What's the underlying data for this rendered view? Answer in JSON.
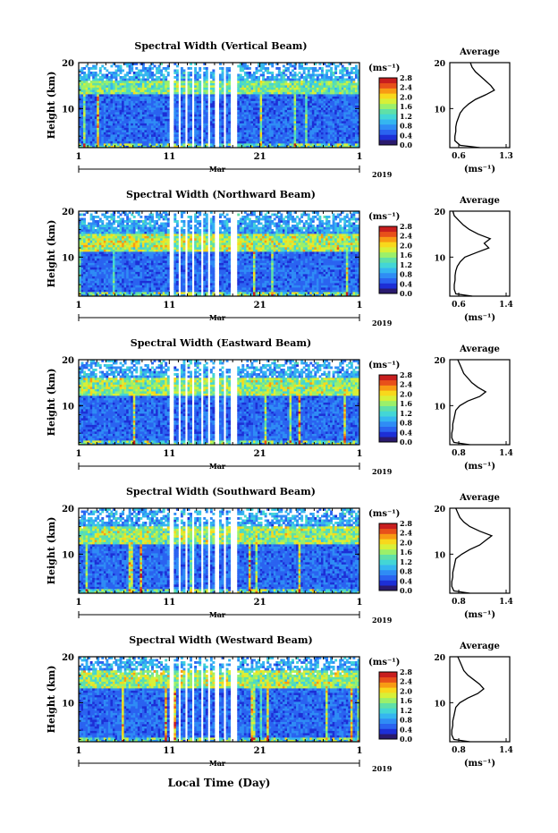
{
  "figure": {
    "xlabel": "Local Time (Day)",
    "month_label": "Mar",
    "year_label": "2019"
  },
  "colorscale": {
    "unit": "(ms⁻¹)",
    "ticks": [
      "0.0",
      "0.4",
      "0.8",
      "1.2",
      "1.6",
      "2.0",
      "2.4",
      "2.8"
    ],
    "colors": [
      "#2a1a6e",
      "#1d2fd6",
      "#2a63f0",
      "#2f8cf5",
      "#35b6f0",
      "#43d6d6",
      "#5fe0a8",
      "#9bf06a",
      "#d8f038",
      "#f8d81c",
      "#f89a14",
      "#e8501a",
      "#c81e1e"
    ]
  },
  "chart_data": [
    {
      "type": "heatmap",
      "title": "Spectral Width (Vertical Beam)",
      "ylabel": "Height (km)",
      "x_ticks": [
        "1",
        "11",
        "21",
        "1"
      ],
      "y_ticks": [
        "10",
        "20"
      ],
      "xlim_day": [
        1,
        32
      ],
      "ylim_km": [
        1.5,
        20
      ],
      "gap_days": [
        [
          11.1,
          11.4
        ],
        [
          11.9,
          12.2
        ],
        [
          12.7,
          13.0
        ],
        [
          13.5,
          13.8
        ],
        [
          14.4,
          14.7
        ],
        [
          15.3,
          15.6
        ],
        [
          16.1,
          16.4
        ],
        [
          17.0,
          17.3
        ],
        [
          17.8,
          18.5
        ]
      ],
      "enhanced_layer": {
        "days": [
          1,
          32
        ],
        "height_km": [
          13,
          16
        ],
        "peak_width": 1.3
      },
      "average": {
        "title": "Average",
        "x_ticks": [
          "0.6",
          "1.3"
        ],
        "xlim": [
          0.6,
          1.3
        ],
        "xlabel": "(ms⁻¹)",
        "height_km": [
          1.5,
          2,
          3,
          4,
          5,
          6,
          7,
          8,
          9,
          10,
          11,
          12,
          13,
          14,
          15,
          16,
          17,
          18,
          19,
          20
        ],
        "width": [
          0.95,
          0.72,
          0.66,
          0.66,
          0.67,
          0.67,
          0.68,
          0.7,
          0.72,
          0.76,
          0.82,
          0.9,
          1.02,
          1.12,
          1.08,
          1.02,
          0.96,
          0.9,
          0.86,
          0.84
        ]
      }
    },
    {
      "type": "heatmap",
      "title": "Spectral Width (Northward Beam)",
      "ylabel": "Height (km)",
      "x_ticks": [
        "1",
        "11",
        "21",
        "1"
      ],
      "y_ticks": [
        "10",
        "20"
      ],
      "xlim_day": [
        1,
        32
      ],
      "ylim_km": [
        1.5,
        20
      ],
      "gap_days": [
        [
          11.1,
          11.4
        ],
        [
          11.9,
          12.2
        ],
        [
          12.7,
          13.0
        ],
        [
          13.5,
          13.8
        ],
        [
          14.4,
          14.7
        ],
        [
          15.3,
          15.6
        ],
        [
          16.1,
          16.4
        ],
        [
          17.8,
          18.5
        ]
      ],
      "enhanced_layer": {
        "days": [
          1,
          32
        ],
        "height_km": [
          11,
          15
        ],
        "peak_width": 1.6
      },
      "average": {
        "title": "Average",
        "x_ticks": [
          "0.6",
          "1.4"
        ],
        "xlim": [
          0.6,
          1.4
        ],
        "xlabel": "(ms⁻¹)",
        "height_km": [
          1.5,
          2,
          3,
          4,
          5,
          6,
          7,
          8,
          9,
          10,
          11,
          12,
          13,
          14,
          15,
          16,
          17,
          18,
          19,
          20
        ],
        "width": [
          0.9,
          0.68,
          0.66,
          0.66,
          0.67,
          0.67,
          0.68,
          0.7,
          0.74,
          0.8,
          0.96,
          1.12,
          1.06,
          1.14,
          0.98,
          0.86,
          0.78,
          0.72,
          0.66,
          0.64
        ]
      }
    },
    {
      "type": "heatmap",
      "title": "Spectral Width (Eastward Beam)",
      "ylabel": "Height (km)",
      "x_ticks": [
        "1",
        "11",
        "21",
        "1"
      ],
      "y_ticks": [
        "10",
        "20"
      ],
      "xlim_day": [
        1,
        32
      ],
      "ylim_km": [
        1.5,
        20
      ],
      "gap_days": [
        [
          11.1,
          11.4
        ],
        [
          11.9,
          12.2
        ],
        [
          12.7,
          13.0
        ],
        [
          13.5,
          13.8
        ],
        [
          14.4,
          14.7
        ],
        [
          15.3,
          15.6
        ],
        [
          16.1,
          16.4
        ],
        [
          17.0,
          17.3
        ],
        [
          17.8,
          18.5
        ]
      ],
      "enhanced_layer": {
        "days": [
          1,
          32
        ],
        "height_km": [
          12,
          16
        ],
        "peak_width": 1.5
      },
      "average": {
        "title": "Average",
        "x_ticks": [
          "0.8",
          "1.4"
        ],
        "xlim": [
          0.8,
          1.4
        ],
        "xlabel": "(ms⁻¹)",
        "height_km": [
          1.5,
          2,
          3,
          4,
          5,
          6,
          7,
          8,
          9,
          10,
          11,
          12,
          13,
          14,
          15,
          16,
          17,
          18,
          19,
          20
        ],
        "width": [
          1.0,
          0.84,
          0.82,
          0.82,
          0.83,
          0.83,
          0.84,
          0.85,
          0.86,
          0.9,
          0.98,
          1.1,
          1.16,
          1.08,
          1.02,
          0.98,
          0.94,
          0.92,
          0.9,
          0.88
        ]
      }
    },
    {
      "type": "heatmap",
      "title": "Spectral Width (Southward Beam)",
      "ylabel": "Height (km)",
      "x_ticks": [
        "1",
        "11",
        "21",
        "1"
      ],
      "y_ticks": [
        "10",
        "20"
      ],
      "xlim_day": [
        1,
        32
      ],
      "ylim_km": [
        1.5,
        20
      ],
      "gap_days": [
        [
          11.1,
          11.4
        ],
        [
          11.9,
          12.2
        ],
        [
          12.7,
          13.0
        ],
        [
          13.5,
          13.8
        ],
        [
          14.4,
          14.7
        ],
        [
          15.3,
          15.6
        ],
        [
          16.1,
          16.4
        ],
        [
          17.0,
          17.3
        ],
        [
          17.8,
          18.5
        ]
      ],
      "enhanced_layer": {
        "days": [
          1,
          32
        ],
        "height_km": [
          12,
          16
        ],
        "peak_width": 1.5
      },
      "average": {
        "title": "Average",
        "x_ticks": [
          "0.8",
          "1.4"
        ],
        "xlim": [
          0.8,
          1.4
        ],
        "xlabel": "(ms⁻¹)",
        "height_km": [
          1.5,
          2,
          3,
          4,
          5,
          6,
          7,
          8,
          9,
          10,
          11,
          12,
          13,
          14,
          15,
          16,
          17,
          18,
          19,
          20
        ],
        "width": [
          1.0,
          0.84,
          0.82,
          0.82,
          0.83,
          0.83,
          0.84,
          0.85,
          0.86,
          0.92,
          1.0,
          1.1,
          1.16,
          1.22,
          1.1,
          1.0,
          0.94,
          0.9,
          0.88,
          0.86
        ]
      }
    },
    {
      "type": "heatmap",
      "title": "Spectral Width (Westward Beam)",
      "ylabel": "Height (km)",
      "x_ticks": [
        "1",
        "11",
        "21",
        "1"
      ],
      "y_ticks": [
        "10",
        "20"
      ],
      "xlim_day": [
        1,
        32
      ],
      "ylim_km": [
        1.5,
        20
      ],
      "gap_days": [
        [
          11.1,
          11.4
        ],
        [
          11.9,
          12.2
        ],
        [
          12.7,
          13.0
        ],
        [
          13.5,
          13.8
        ],
        [
          14.4,
          14.7
        ],
        [
          15.3,
          15.6
        ],
        [
          16.1,
          16.4
        ],
        [
          17.0,
          17.3
        ],
        [
          17.8,
          18.5
        ]
      ],
      "enhanced_layer": {
        "days": [
          1,
          32
        ],
        "height_km": [
          13,
          17
        ],
        "peak_width": 1.5
      },
      "average": {
        "title": "Average",
        "x_ticks": [
          "0.8",
          "1.4"
        ],
        "xlim": [
          0.8,
          1.4
        ],
        "xlabel": "(ms⁻¹)",
        "height_km": [
          1.5,
          2,
          3,
          4,
          5,
          6,
          7,
          8,
          9,
          10,
          11,
          12,
          13,
          14,
          15,
          16,
          17,
          18,
          19,
          20
        ],
        "width": [
          1.0,
          0.84,
          0.82,
          0.82,
          0.83,
          0.83,
          0.84,
          0.85,
          0.86,
          0.9,
          0.98,
          1.08,
          1.14,
          1.1,
          1.04,
          0.98,
          0.94,
          0.92,
          0.9,
          0.88
        ]
      }
    }
  ]
}
